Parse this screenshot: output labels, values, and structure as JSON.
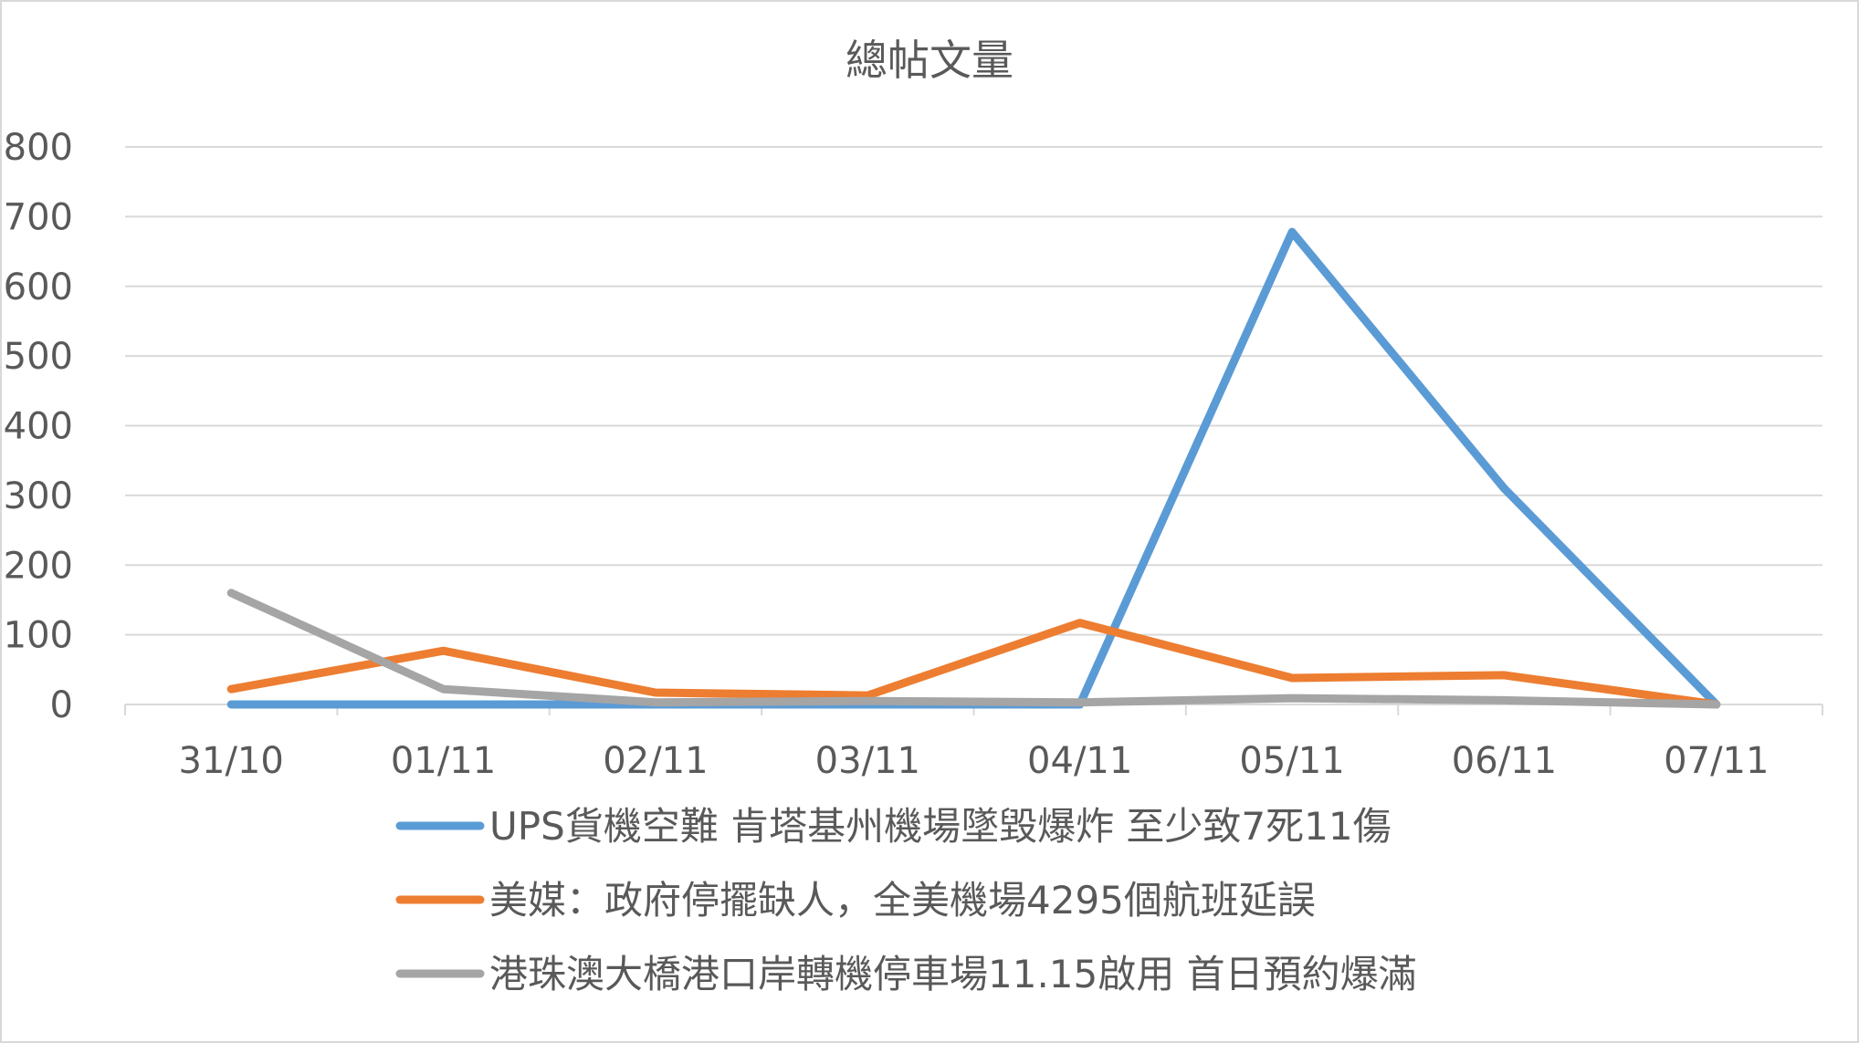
{
  "chart_data": {
    "type": "line",
    "title": "總帖文量",
    "categories": [
      "31/10",
      "01/11",
      "02/11",
      "03/11",
      "04/11",
      "05/11",
      "06/11",
      "07/11"
    ],
    "ylim": [
      0,
      800
    ],
    "yticks": [
      "0",
      "100",
      "200",
      "300",
      "400",
      "500",
      "600",
      "700",
      "800"
    ],
    "grid": true,
    "legend_position": "bottom",
    "series": [
      {
        "name": "UPS貨機空難 肯塔基州機場墜毀爆炸 至少致7死11傷",
        "color": "#5b9bd5",
        "values": [
          0,
          0,
          0,
          0,
          0,
          678,
          310,
          0
        ]
      },
      {
        "name": "美媒：政府停擺缺人，全美機場4295個航班延誤",
        "color": "#ed7d31",
        "values": [
          22,
          77,
          17,
          13,
          117,
          38,
          42,
          0
        ]
      },
      {
        "name": "港珠澳大橋港口岸轉機停車場11.15啟用 首日預約爆滿",
        "color": "#a5a5a5",
        "values": [
          160,
          22,
          3,
          5,
          3,
          9,
          6,
          0
        ]
      }
    ]
  }
}
